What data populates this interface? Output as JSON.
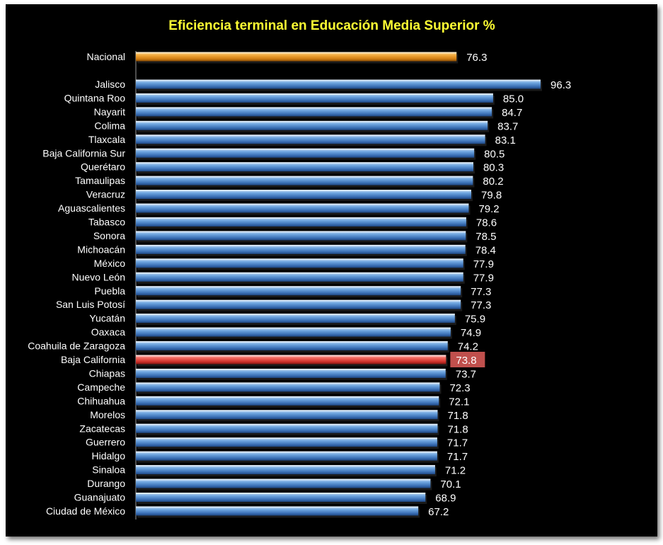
{
  "chart_data": {
    "type": "bar",
    "orientation": "horizontal",
    "title": "Eficiencia terminal en Educación Media Superior %",
    "national": {
      "category": "Nacional",
      "value": 76.3
    },
    "categories": [
      "Jalisco",
      "Quintana Roo",
      "Nayarit",
      "Colima",
      "Tlaxcala",
      "Baja California Sur",
      "Querétaro",
      "Tamaulipas",
      "Veracruz",
      "Aguascalientes",
      "Tabasco",
      "Sonora",
      "Michoacán",
      "México",
      "Nuevo León",
      "Puebla",
      "San Luis Potosí",
      "Yucatán",
      "Oaxaca",
      "Coahuila de Zaragoza",
      "Baja California",
      "Chiapas",
      "Campeche",
      "Chihuahua",
      "Morelos",
      "Zacatecas",
      "Guerrero",
      "Hidalgo",
      "Sinaloa",
      "Durango",
      "Guanajuato",
      "Ciudad de México"
    ],
    "values": [
      96.3,
      85.0,
      84.7,
      83.7,
      83.1,
      80.5,
      80.3,
      80.2,
      79.8,
      79.2,
      78.6,
      78.5,
      78.4,
      77.9,
      77.9,
      77.3,
      77.3,
      75.9,
      74.9,
      74.2,
      73.8,
      73.7,
      72.3,
      72.1,
      71.8,
      71.8,
      71.7,
      71.7,
      71.2,
      70.1,
      68.9,
      67.2
    ],
    "highlight": "Baja California",
    "colors": {
      "background": "#000000",
      "title": "#ffff33",
      "national": "#f0a02e",
      "bars": "#5b9bd5",
      "highlight": "#e8524a",
      "highlight_label_bg": "#c0504d",
      "text": "#ffffff"
    },
    "xlim": [
      0,
      100
    ],
    "grid": false,
    "legend": "none"
  }
}
